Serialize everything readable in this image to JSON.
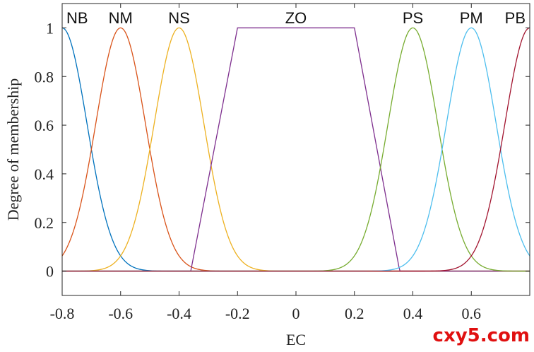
{
  "chart_data": {
    "type": "line",
    "xlabel": "EC",
    "ylabel": "Degree of membership",
    "xlim": [
      -0.8,
      0.8
    ],
    "ylim": [
      -0.1,
      1.1
    ],
    "xticks": [
      -0.8,
      -0.6,
      -0.4,
      -0.2,
      0,
      0.2,
      0.4,
      0.6
    ],
    "xtick_labels": [
      "-0.8",
      "-0.6",
      "-0.4",
      "-0.2",
      "0",
      "0.2",
      "0.4",
      "0.6"
    ],
    "yticks": [
      0,
      0.2,
      0.4,
      0.6,
      0.8,
      1
    ],
    "ytick_labels": [
      "0",
      "0.2",
      "0.4",
      "0.6",
      "0.8",
      "1"
    ],
    "series": [
      {
        "name": "NB",
        "shape": "gaussian",
        "center": -0.8,
        "sigma": 0.085,
        "color": "#0072BD"
      },
      {
        "name": "NM",
        "shape": "gaussian",
        "center": -0.6,
        "sigma": 0.085,
        "color": "#D95319"
      },
      {
        "name": "NS",
        "shape": "gaussian",
        "center": -0.4,
        "sigma": 0.085,
        "color": "#EDB120"
      },
      {
        "name": "ZO",
        "shape": "trapezoid",
        "points": [
          -0.36,
          -0.2,
          0.2,
          0.355
        ],
        "color": "#7E2F8E"
      },
      {
        "name": "PS",
        "shape": "gaussian",
        "center": 0.4,
        "sigma": 0.085,
        "color": "#77AC30"
      },
      {
        "name": "PM",
        "shape": "gaussian",
        "center": 0.6,
        "sigma": 0.085,
        "color": "#4DBEEE"
      },
      {
        "name": "PB",
        "shape": "gaussian",
        "center": 0.8,
        "sigma": 0.085,
        "color": "#A2142F"
      }
    ]
  },
  "watermark": "cxy5.com"
}
